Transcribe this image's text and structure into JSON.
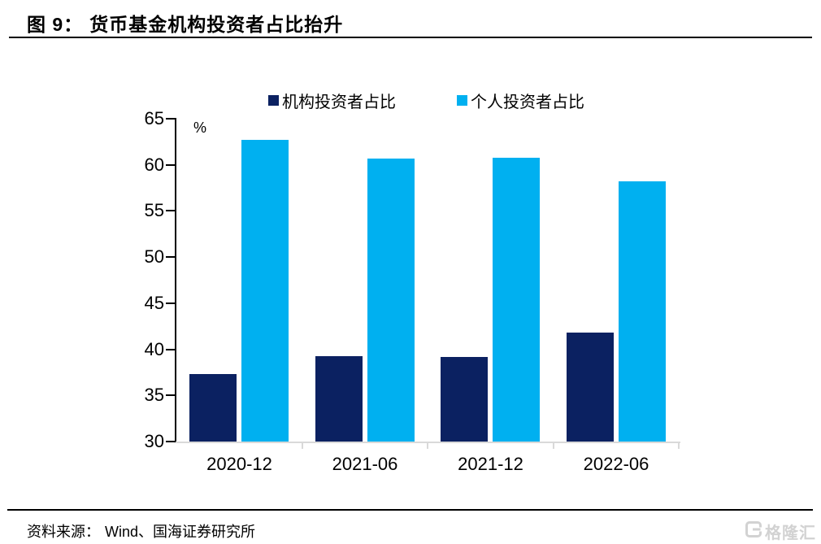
{
  "header": {
    "figure_label": "图 9：",
    "title": "货币基金机构投资者占比抬升"
  },
  "chart_data": {
    "type": "bar",
    "title": "货币基金机构投资者占比抬升",
    "unit_label": "%",
    "categories": [
      "2020-12",
      "2021-06",
      "2021-12",
      "2022-06"
    ],
    "series": [
      {
        "name": "机构投资者占比",
        "color": "#0b2161",
        "values": [
          37.3,
          39.3,
          39.2,
          41.8
        ]
      },
      {
        "name": "个人投资者占比",
        "color": "#00b0f0",
        "values": [
          62.7,
          60.7,
          60.8,
          58.2
        ]
      }
    ],
    "ylim": [
      30,
      65
    ],
    "yticks": [
      65,
      60,
      55,
      50,
      45,
      40,
      35,
      30
    ],
    "grid": false,
    "legend_position": "top-center",
    "axis_color": "#000000",
    "baseline_color": "#d9d9d9"
  },
  "footer": {
    "source_label": "资料来源：",
    "source_text": "Wind、国海证券研究所",
    "watermark_text": "格隆汇",
    "watermark_color": "#d2d2d2"
  }
}
